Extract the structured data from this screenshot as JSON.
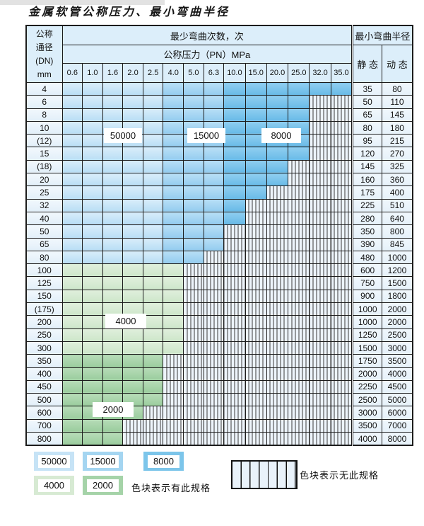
{
  "title": "金属软管公称压力、最小弯曲半径",
  "table": {
    "header": {
      "dn_lines": [
        "公称",
        "通径",
        "(DN)",
        "mm"
      ],
      "bend_cycles_label": "最少弯曲次数，次",
      "pressure_label": "公称压力（PN）MPa",
      "min_bend_radius_label": "最小弯曲半径",
      "static_label": "静 态",
      "dynamic_label": "动 态",
      "pressure_values": [
        "0.6",
        "1.0",
        "1.6",
        "2.0",
        "2.5",
        "4.0",
        "5.0",
        "6.3",
        "10.0",
        "15.0",
        "20.0",
        "25.0",
        "32.0",
        "35.0"
      ]
    },
    "color_coding": {
      "blue_rows_by_column": {
        "0.6-2.5": "50000",
        "4.0-6.3": "15000",
        "10.0-35.0": "8000"
      },
      "green_rows": {
        "DN100-300": "4000",
        "DN350-800": "2000"
      },
      "hatched": "无此规格"
    },
    "rows": [
      {
        "dn": "4",
        "palette": "blue",
        "colored_cols": 14,
        "max_pn": "35.0",
        "static": "35",
        "dynamic": "80"
      },
      {
        "dn": "6",
        "palette": "blue",
        "colored_cols": 12,
        "max_pn": "25.0",
        "static": "50",
        "dynamic": "110"
      },
      {
        "dn": "8",
        "palette": "blue",
        "colored_cols": 12,
        "max_pn": "25.0",
        "static": "65",
        "dynamic": "145"
      },
      {
        "dn": "10",
        "palette": "blue",
        "colored_cols": 12,
        "max_pn": "25.0",
        "static": "80",
        "dynamic": "180"
      },
      {
        "dn": "(12)",
        "palette": "blue",
        "colored_cols": 12,
        "max_pn": "25.0",
        "static": "95",
        "dynamic": "215"
      },
      {
        "dn": "15",
        "palette": "blue",
        "colored_cols": 12,
        "max_pn": "25.0",
        "static": "120",
        "dynamic": "270"
      },
      {
        "dn": "(18)",
        "palette": "blue",
        "colored_cols": 11,
        "max_pn": "20.0",
        "static": "145",
        "dynamic": "325"
      },
      {
        "dn": "20",
        "palette": "blue",
        "colored_cols": 11,
        "max_pn": "20.0",
        "static": "160",
        "dynamic": "360"
      },
      {
        "dn": "25",
        "palette": "blue",
        "colored_cols": 10,
        "max_pn": "15.0",
        "static": "175",
        "dynamic": "400"
      },
      {
        "dn": "32",
        "palette": "blue",
        "colored_cols": 9,
        "max_pn": "10.0",
        "static": "225",
        "dynamic": "510"
      },
      {
        "dn": "40",
        "palette": "blue",
        "colored_cols": 9,
        "max_pn": "10.0",
        "static": "280",
        "dynamic": "640"
      },
      {
        "dn": "50",
        "palette": "blue",
        "colored_cols": 8,
        "max_pn": "6.3",
        "static": "350",
        "dynamic": "800"
      },
      {
        "dn": "65",
        "palette": "blue",
        "colored_cols": 8,
        "max_pn": "6.3",
        "static": "390",
        "dynamic": "845"
      },
      {
        "dn": "80",
        "palette": "blue",
        "colored_cols": 7,
        "max_pn": "5.0",
        "static": "480",
        "dynamic": "1000"
      },
      {
        "dn": "100",
        "palette": "green4000",
        "colored_cols": 6,
        "max_pn": "4.0",
        "static": "600",
        "dynamic": "1200"
      },
      {
        "dn": "125",
        "palette": "green4000",
        "colored_cols": 6,
        "max_pn": "4.0",
        "static": "750",
        "dynamic": "1500"
      },
      {
        "dn": "150",
        "palette": "green4000",
        "colored_cols": 6,
        "max_pn": "4.0",
        "static": "900",
        "dynamic": "1800"
      },
      {
        "dn": "(175)",
        "palette": "green4000",
        "colored_cols": 6,
        "max_pn": "4.0",
        "static": "1000",
        "dynamic": "2000"
      },
      {
        "dn": "200",
        "palette": "green4000",
        "colored_cols": 6,
        "max_pn": "4.0",
        "static": "1000",
        "dynamic": "2000"
      },
      {
        "dn": "250",
        "palette": "green4000",
        "colored_cols": 6,
        "max_pn": "4.0",
        "static": "1250",
        "dynamic": "2500"
      },
      {
        "dn": "300",
        "palette": "green4000",
        "colored_cols": 6,
        "max_pn": "4.0",
        "static": "1500",
        "dynamic": "3000"
      },
      {
        "dn": "350",
        "palette": "green2000",
        "colored_cols": 5,
        "max_pn": "2.5",
        "static": "1750",
        "dynamic": "3500"
      },
      {
        "dn": "400",
        "palette": "green2000",
        "colored_cols": 5,
        "max_pn": "2.5",
        "static": "2000",
        "dynamic": "4000"
      },
      {
        "dn": "450",
        "palette": "green2000",
        "colored_cols": 5,
        "max_pn": "2.5",
        "static": "2250",
        "dynamic": "4500"
      },
      {
        "dn": "500",
        "palette": "green2000",
        "colored_cols": 5,
        "max_pn": "2.5",
        "static": "2500",
        "dynamic": "5000"
      },
      {
        "dn": "600",
        "palette": "green2000",
        "colored_cols": 4,
        "max_pn": "2.0",
        "static": "3000",
        "dynamic": "6000"
      },
      {
        "dn": "700",
        "palette": "green2000",
        "colored_cols": 3,
        "max_pn": "1.6",
        "static": "3500",
        "dynamic": "7000"
      },
      {
        "dn": "800",
        "palette": "green2000",
        "colored_cols": 3,
        "max_pn": "1.6",
        "static": "4000",
        "dynamic": "8000"
      }
    ]
  },
  "overlays": {
    "l50000": "50000",
    "l15000": "15000",
    "l8000": "8000",
    "l4000": "4000",
    "l2000": "2000"
  },
  "legend": {
    "items": [
      {
        "label": "50000",
        "color": "#c6e3f6"
      },
      {
        "label": "15000",
        "color": "#a4d5f1"
      },
      {
        "label": "8000",
        "color": "#7cc5ea"
      },
      {
        "label": "4000",
        "color": "#d7ead3"
      },
      {
        "label": "2000",
        "color": "#a5d3a8"
      }
    ],
    "has_spec_text": "色块表示有此规格",
    "no_spec_text": "色块表示无此规格"
  },
  "colors": {
    "cycles_50000": "#c6e3f6",
    "cycles_15000": "#a4d5f1",
    "cycles_8000": "#7cc5ea",
    "cycles_4000": "#d7ead3",
    "cycles_2000": "#a5d3a8",
    "hatch_bg": "#edf4fb",
    "header_bg": "#dceefa",
    "border": "#1c1c1c"
  }
}
